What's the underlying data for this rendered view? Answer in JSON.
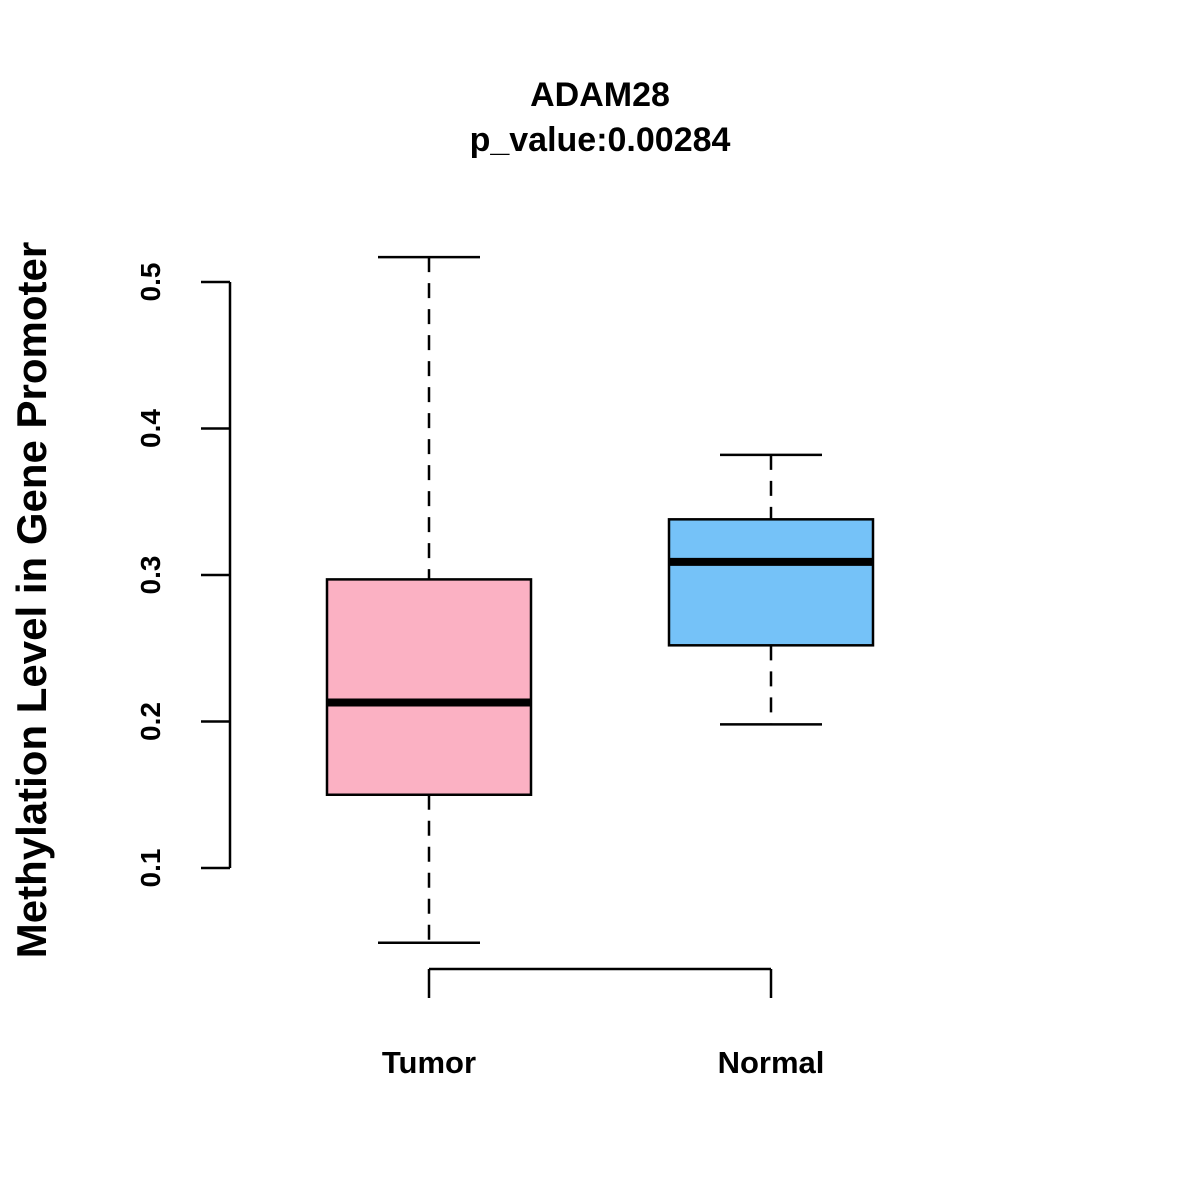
{
  "chart_data": {
    "type": "boxplot",
    "title": "ADAM28",
    "subtitle": "p_value:0.00284",
    "xlabel": "",
    "ylabel": "Methylation Level in Gene Promoter",
    "ylim": [
      0.1,
      0.5
    ],
    "yticks": [
      "0.1",
      "0.2",
      "0.3",
      "0.4",
      "0.5"
    ],
    "ytick_values": [
      0.1,
      0.2,
      0.3,
      0.4,
      0.5
    ],
    "categories": [
      "Tumor",
      "Normal"
    ],
    "grid": false,
    "series": [
      {
        "name": "Tumor",
        "color": "#FBB1C3",
        "whisker_low": 0.049,
        "q1": 0.15,
        "median": 0.213,
        "q3": 0.297,
        "whisker_high": 0.517
      },
      {
        "name": "Normal",
        "color": "#75C2F8",
        "whisker_low": 0.198,
        "q1": 0.252,
        "median": 0.309,
        "q3": 0.338,
        "whisker_high": 0.382
      }
    ]
  }
}
